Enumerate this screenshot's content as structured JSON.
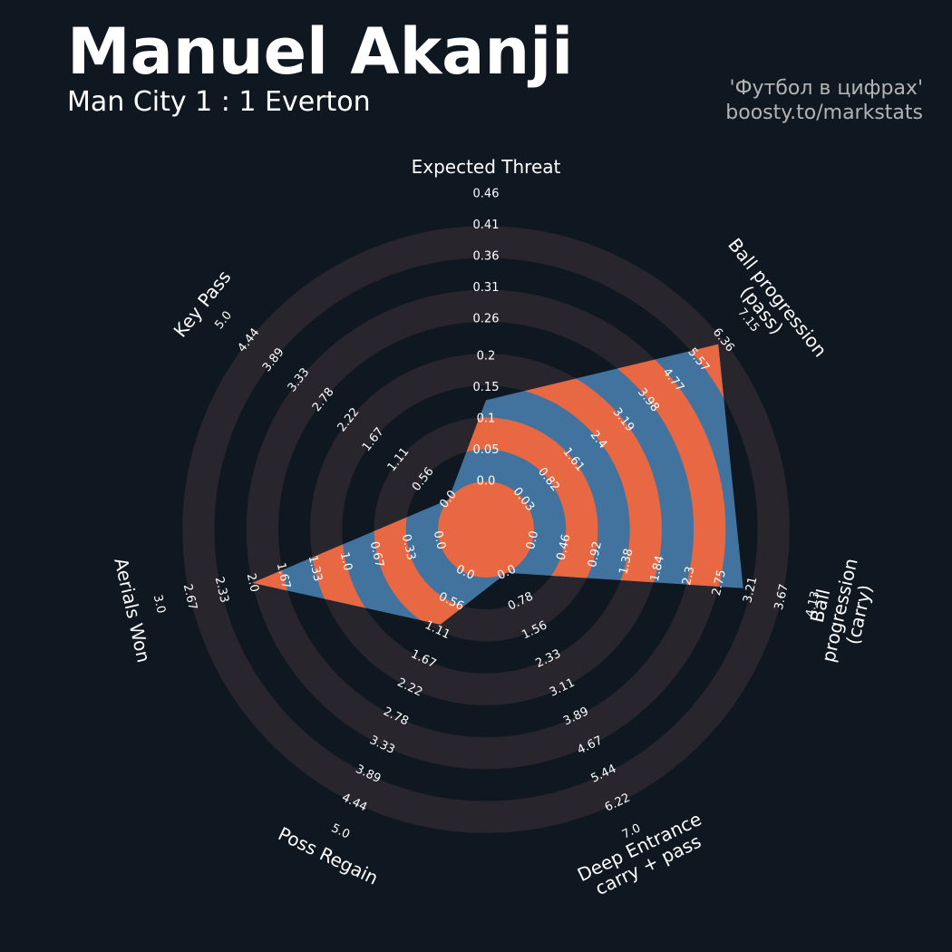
{
  "chart_data": {
    "type": "radar",
    "title": "Manuel Akanji",
    "subtitle": "Man City 1 : 1 Everton",
    "credits": [
      "'Футбол в цифрах'",
      "boosty.to/markstats"
    ],
    "categories": [
      "Expected Threat",
      "Ball progression (pass)",
      "Ball progression (carry)",
      "Deep Entrance\ncarry + pass",
      "Poss Regain",
      "Aerials Won",
      "Key Pass"
    ],
    "values": [
      0.13,
      6.2,
      3.1,
      0,
      1.0,
      2.0,
      0
    ],
    "colors": {
      "background": "#0f1820",
      "ring": "#28252c",
      "fill": "#41739e",
      "fill_alt": "#e76842"
    },
    "lims": [
      [
        0,
        0.46
      ],
      [
        0.03,
        7.15
      ],
      [
        0,
        4.13
      ],
      [
        0,
        7.0
      ],
      [
        0,
        5.0
      ],
      [
        0,
        3.0
      ],
      [
        0,
        5.0
      ]
    ],
    "ticks": [
      [
        {
          "value": 0,
          "label": "0.0"
        },
        0.05,
        0.1,
        0.15,
        0.2,
        0.26,
        0.31,
        0.36,
        0.41,
        0.46
      ],
      [
        0.03,
        0.82,
        1.61,
        2.4,
        3.19,
        3.98,
        4.77,
        5.57,
        6.36,
        7.15
      ],
      [
        {
          "value": 0,
          "label": "0.0"
        },
        0.46,
        0.92,
        1.38,
        1.84,
        2.3,
        2.75,
        3.21,
        3.67,
        4.13
      ],
      [
        {
          "value": 0,
          "label": "0.0"
        },
        0.78,
        1.56,
        2.33,
        3.11,
        3.89,
        4.67,
        5.44,
        6.22,
        {
          "value": 7,
          "label": "7.0"
        }
      ],
      [
        {
          "value": 0,
          "label": "0.0"
        },
        0.56,
        1.11,
        1.67,
        2.22,
        2.78,
        3.33,
        3.89,
        4.44,
        {
          "value": 5,
          "label": "5.0"
        }
      ],
      [
        {
          "value": 0,
          "label": "0.0"
        },
        0.33,
        0.67,
        {
          "value": 1,
          "label": "1.0"
        },
        1.33,
        1.67,
        {
          "value": 2,
          "label": "2.0"
        },
        2.33,
        2.67,
        {
          "value": 3,
          "label": "3.0"
        }
      ],
      [
        {
          "value": 0,
          "label": "0.0"
        },
        0.56,
        1.11,
        1.67,
        2.22,
        2.78,
        3.33,
        3.89,
        4.44,
        {
          "value": 5,
          "label": "5.0"
        }
      ]
    ]
  }
}
